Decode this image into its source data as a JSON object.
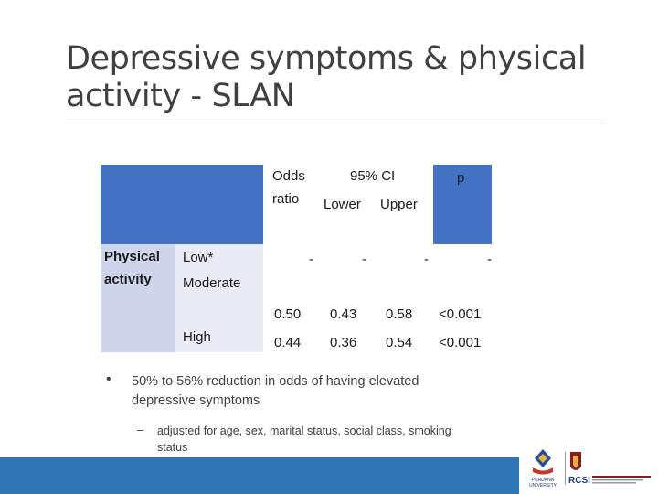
{
  "slide": {
    "title_line1": "Depressive symptoms & physical",
    "title_line2": "activity  - SLAN"
  },
  "table": {
    "header": {
      "odds_ratio_line1": "Odds",
      "odds_ratio_line2": "ratio",
      "ci_label": "95% CI",
      "lower": "Lower",
      "upper": "Upper",
      "p": "p"
    },
    "row_label_line1": "Physical",
    "row_label_line2": "activity",
    "rows": [
      {
        "level": "Low*",
        "or": "-",
        "lower": "-",
        "upper": "-",
        "p": "-"
      },
      {
        "level": "Moderate",
        "or": "0.50",
        "lower": "0.43",
        "upper": "0.58",
        "p": "<0.001"
      },
      {
        "level": "High",
        "or": "0.44",
        "lower": "0.36",
        "upper": "0.54",
        "p": "<0.001"
      }
    ]
  },
  "bullets": {
    "main": "50% to 56% reduction in  odds of having elevated depressive symptoms",
    "sub": "adjusted for age, sex, marital status, social class, smoking status"
  },
  "logos": {
    "left_text_line1": "PERDANA",
    "left_text_line2": "UNIVERSITY",
    "right_text": "RCSI"
  },
  "colors": {
    "header_blue": "#4472c4",
    "row_light": "#cfd5ea",
    "bar_blue": "#2e75b6"
  }
}
